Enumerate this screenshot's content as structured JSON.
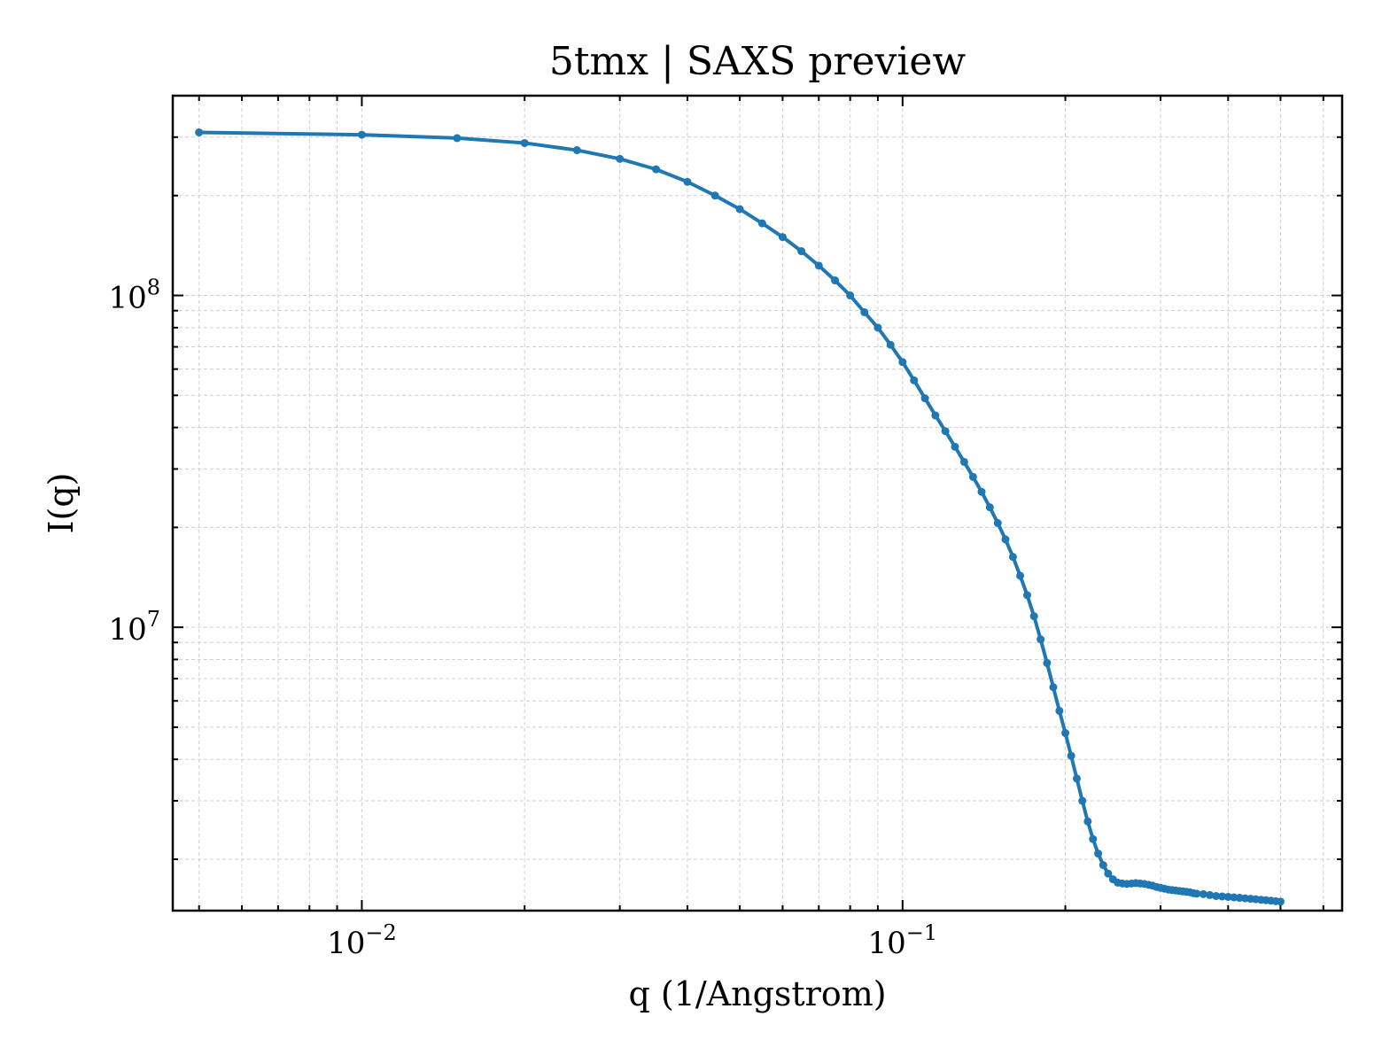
{
  "chart_data": {
    "type": "line",
    "title": "5tmx | SAXS preview",
    "xlabel": "q (1/Angstrom)",
    "ylabel": "I(q)",
    "xscale": "log",
    "yscale": "log",
    "xlim": [
      0.00447,
      0.65
    ],
    "ylim": [
      1400000,
      400000000
    ],
    "grid": true,
    "legend": "none",
    "x_ticks": [
      {
        "value": 0.01,
        "base": "10",
        "exp": "−2"
      },
      {
        "value": 0.1,
        "base": "10",
        "exp": "−1"
      }
    ],
    "y_ticks": [
      {
        "value": 10000000,
        "base": "10",
        "exp": "7"
      },
      {
        "value": 100000000,
        "base": "10",
        "exp": "8"
      }
    ],
    "series": [
      {
        "color": "#1f77b4",
        "x": [
          0.005,
          0.01,
          0.015,
          0.02,
          0.025,
          0.03,
          0.035,
          0.04,
          0.045,
          0.05,
          0.055,
          0.06,
          0.065,
          0.07,
          0.075,
          0.08,
          0.085,
          0.09,
          0.095,
          0.1,
          0.105,
          0.11,
          0.115,
          0.12,
          0.125,
          0.13,
          0.135,
          0.14,
          0.145,
          0.15,
          0.155,
          0.16,
          0.165,
          0.17,
          0.175,
          0.18,
          0.185,
          0.19,
          0.195,
          0.2,
          0.205,
          0.21,
          0.215,
          0.22,
          0.225,
          0.23,
          0.235,
          0.24,
          0.245,
          0.25,
          0.255,
          0.26,
          0.265,
          0.27,
          0.275,
          0.28,
          0.285,
          0.29,
          0.295,
          0.3,
          0.305,
          0.31,
          0.315,
          0.32,
          0.325,
          0.33,
          0.335,
          0.34,
          0.345,
          0.35,
          0.36,
          0.37,
          0.38,
          0.39,
          0.4,
          0.41,
          0.42,
          0.43,
          0.44,
          0.45,
          0.46,
          0.47,
          0.48,
          0.49,
          0.5
        ],
        "y": [
          310000000,
          305000000,
          298000000,
          288000000,
          274000000,
          258000000,
          240000000,
          220000000,
          200000000,
          182000000,
          165000000,
          150000000,
          136000000,
          123000000,
          111000000,
          100000000,
          89000000,
          80000000,
          71000000,
          63000000,
          55500000,
          49000000,
          43500000,
          39000000,
          35000000,
          31500000,
          28400000,
          25600000,
          23000000,
          20600000,
          18400000,
          16300000,
          14300000,
          12500000,
          10800000,
          9200000,
          7800000,
          6600000,
          5600000,
          4800000,
          4100000,
          3500000,
          3000000,
          2600000,
          2300000,
          2080000,
          1920000,
          1810000,
          1740000,
          1700000,
          1690000,
          1685000,
          1690000,
          1695000,
          1690000,
          1685000,
          1675000,
          1665000,
          1650000,
          1640000,
          1630000,
          1620000,
          1615000,
          1610000,
          1605000,
          1600000,
          1595000,
          1590000,
          1580000,
          1575000,
          1570000,
          1560000,
          1550000,
          1545000,
          1540000,
          1535000,
          1530000,
          1525000,
          1520000,
          1515000,
          1510000,
          1505000,
          1500000,
          1495000,
          1490000
        ]
      }
    ]
  }
}
